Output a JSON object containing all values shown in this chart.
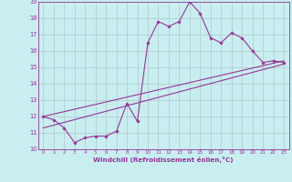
{
  "xlabel": "Windchill (Refroidissement éolien,°C)",
  "xlim": [
    -0.5,
    23.5
  ],
  "ylim": [
    10,
    19
  ],
  "yticks": [
    10,
    11,
    12,
    13,
    14,
    15,
    16,
    17,
    18,
    19
  ],
  "xticks": [
    0,
    1,
    2,
    3,
    4,
    5,
    6,
    7,
    8,
    9,
    10,
    11,
    12,
    13,
    14,
    15,
    16,
    17,
    18,
    19,
    20,
    21,
    22,
    23
  ],
  "bg_color": "#c8eef0",
  "line_color": "#993399",
  "grid_color": "#b0c8cc",
  "series1_x": [
    0,
    1,
    2,
    3,
    4,
    5,
    6,
    7,
    8,
    9,
    10,
    11,
    12,
    13,
    14,
    15,
    16,
    17,
    18,
    19,
    20,
    21,
    22,
    23
  ],
  "series1_y": [
    12.0,
    11.8,
    11.3,
    10.4,
    10.7,
    10.8,
    10.8,
    11.1,
    12.8,
    11.7,
    16.5,
    17.8,
    17.5,
    17.8,
    19.0,
    18.3,
    16.8,
    16.5,
    17.1,
    16.8,
    16.0,
    15.3,
    15.4,
    15.3
  ],
  "series2_x": [
    0,
    23
  ],
  "series2_y": [
    12.0,
    15.4
  ],
  "series3_x": [
    0,
    23
  ],
  "series3_y": [
    11.3,
    15.2
  ]
}
